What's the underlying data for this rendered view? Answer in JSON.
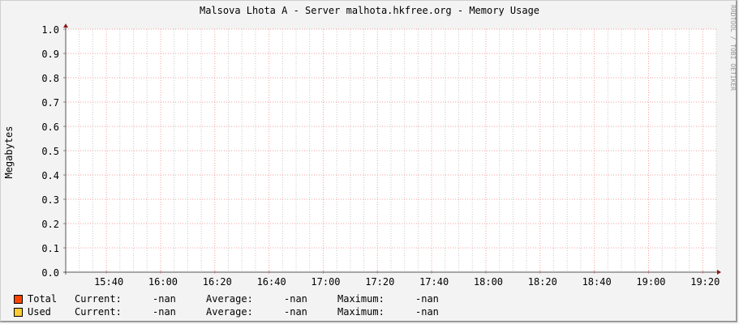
{
  "chart_data": {
    "type": "area",
    "title": "Malsova Lhota A - Server malhota.hkfree.org - Memory Usage",
    "ylabel": "Megabytes",
    "xlabel": "",
    "ylim": [
      0,
      1.0
    ],
    "xlim": [
      "15:25",
      "19:25"
    ],
    "y_ticks": [
      "0.0",
      "0.1",
      "0.2",
      "0.3",
      "0.4",
      "0.5",
      "0.6",
      "0.7",
      "0.8",
      "0.9",
      "1.0"
    ],
    "x_ticks": [
      "15:40",
      "16:00",
      "16:20",
      "16:40",
      "17:00",
      "17:20",
      "17:40",
      "18:00",
      "18:20",
      "18:40",
      "19:00",
      "19:20"
    ],
    "grid": true,
    "series": [
      {
        "name": "Total",
        "color": "#ff4400",
        "values": []
      },
      {
        "name": "Used",
        "color": "#ffcc33",
        "values": []
      }
    ],
    "watermark": "RRDTOOL / TOBI OETIKER"
  },
  "legend": [
    {
      "name": "Total",
      "color": "#ff4400",
      "current_label": "Current:",
      "current": "-nan",
      "average_label": "Average:",
      "average": "-nan",
      "maximum_label": "Maximum:",
      "maximum": "-nan"
    },
    {
      "name": "Used",
      "color": "#ffcc33",
      "current_label": "Current:",
      "current": "-nan",
      "average_label": "Average:",
      "average": "-nan",
      "maximum_label": "Maximum:",
      "maximum": "-nan"
    }
  ]
}
